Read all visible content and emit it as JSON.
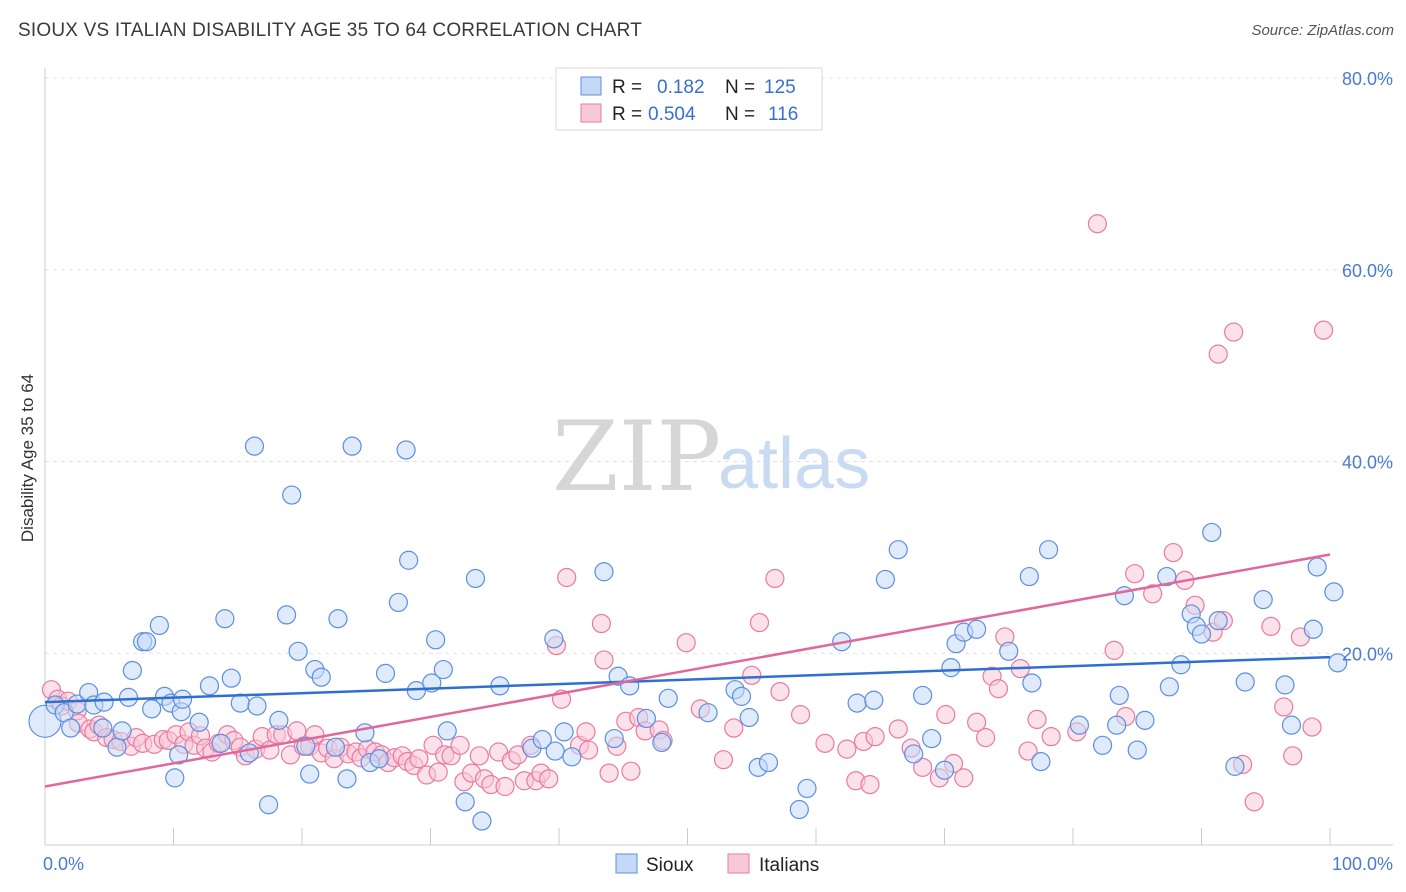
{
  "title": "SIOUX VS ITALIAN DISABILITY AGE 35 TO 64 CORRELATION CHART",
  "source": "Source: ZipAtlas.com",
  "watermark": {
    "zip": "ZIP",
    "atlas": "atlas"
  },
  "legend": {
    "rows": [
      {
        "r_label": "R =",
        "r_value": "0.182",
        "n_label": "N =",
        "n_value": "125"
      },
      {
        "r_label": "R =",
        "r_value": "0.504",
        "n_label": "N =",
        "n_value": "116"
      }
    ]
  },
  "chart_data": {
    "type": "scatter",
    "ylabel": "Disability Age 35 to 64",
    "xlim": [
      0,
      100
    ],
    "ylim": [
      0,
      80
    ],
    "x_tick_labels": {
      "left": "0.0%",
      "right": "100.0%"
    },
    "y_ticks": [
      {
        "value": 20,
        "label": "20.0%"
      },
      {
        "value": 40,
        "label": "40.0%"
      },
      {
        "value": 60,
        "label": "60.0%"
      },
      {
        "value": 80,
        "label": "80.0%"
      }
    ],
    "grid": true,
    "legend_placement": "top-center",
    "colors": {
      "sioux": "#5b8fe0",
      "sioux_fill": "#c5d8f5",
      "italians": "#ea7aa0",
      "italians_fill": "#f7c8d7"
    },
    "series": [
      {
        "name": "Sioux",
        "trend": {
          "x": [
            0,
            100
          ],
          "y": [
            14.9,
            19.6
          ]
        },
        "points": [
          [
            0,
            12.9
          ],
          [
            0.8,
            14.6
          ],
          [
            1.5,
            13.8
          ],
          [
            2,
            12.2
          ],
          [
            2.5,
            14.7
          ],
          [
            3.4,
            15.9
          ],
          [
            3.8,
            14.6
          ],
          [
            4.5,
            12.2
          ],
          [
            4.6,
            14.9
          ],
          [
            5.6,
            10.2
          ],
          [
            6,
            11.9
          ],
          [
            6.5,
            15.4
          ],
          [
            6.8,
            18.2
          ],
          [
            7.6,
            21.2
          ],
          [
            7.9,
            21.2
          ],
          [
            8.3,
            14.2
          ],
          [
            8.9,
            22.9
          ],
          [
            9.3,
            15.5
          ],
          [
            9.8,
            14.8
          ],
          [
            10.1,
            7
          ],
          [
            10.4,
            9.4
          ],
          [
            10.6,
            13.9
          ],
          [
            10.7,
            15.2
          ],
          [
            12,
            12.8
          ],
          [
            12.8,
            16.6
          ],
          [
            13.7,
            10.6
          ],
          [
            14,
            23.6
          ],
          [
            14.5,
            17.4
          ],
          [
            15.2,
            14.8
          ],
          [
            15.9,
            9.6
          ],
          [
            16.3,
            41.6
          ],
          [
            16.5,
            14.5
          ],
          [
            17.4,
            4.2
          ],
          [
            18.2,
            13
          ],
          [
            18.8,
            24
          ],
          [
            19.2,
            36.5
          ],
          [
            19.7,
            20.2
          ],
          [
            20.3,
            10.3
          ],
          [
            20.6,
            7.4
          ],
          [
            21,
            18.3
          ],
          [
            21.5,
            17.5
          ],
          [
            22.6,
            10.2
          ],
          [
            22.8,
            23.6
          ],
          [
            23.5,
            6.9
          ],
          [
            23.9,
            41.6
          ],
          [
            24.9,
            11.7
          ],
          [
            25.3,
            8.6
          ],
          [
            26,
            9
          ],
          [
            26.5,
            17.9
          ],
          [
            27.5,
            25.3
          ],
          [
            28.1,
            41.2
          ],
          [
            28.3,
            29.7
          ],
          [
            28.9,
            16.1
          ],
          [
            30.1,
            16.9
          ],
          [
            30.4,
            21.4
          ],
          [
            31,
            18.3
          ],
          [
            31.3,
            11.9
          ],
          [
            32.7,
            4.5
          ],
          [
            33.5,
            27.8
          ],
          [
            34,
            2.5
          ],
          [
            35.4,
            16.6
          ],
          [
            37.9,
            10.1
          ],
          [
            38.7,
            11
          ],
          [
            39.6,
            21.5
          ],
          [
            39.7,
            9.8
          ],
          [
            40.4,
            11.8
          ],
          [
            41,
            9.2
          ],
          [
            43.5,
            28.5
          ],
          [
            44.3,
            11.1
          ],
          [
            44.6,
            17.6
          ],
          [
            45.5,
            16.6
          ],
          [
            46.8,
            13.2
          ],
          [
            48,
            10.7
          ],
          [
            48.5,
            15.3
          ],
          [
            51.6,
            13.8
          ],
          [
            53.7,
            16.2
          ],
          [
            54.2,
            15.5
          ],
          [
            54.8,
            13.3
          ],
          [
            55.5,
            8.1
          ],
          [
            56.3,
            8.6
          ],
          [
            58.7,
            3.7
          ],
          [
            59.3,
            5.9
          ],
          [
            62,
            21.2
          ],
          [
            63.2,
            14.8
          ],
          [
            64.5,
            15.1
          ],
          [
            65.4,
            27.7
          ],
          [
            66.4,
            30.8
          ],
          [
            67.6,
            9.5
          ],
          [
            68.3,
            15.6
          ],
          [
            69,
            11.1
          ],
          [
            70,
            7.8
          ],
          [
            70.5,
            18.5
          ],
          [
            70.9,
            21
          ],
          [
            71.5,
            22.2
          ],
          [
            72.5,
            22.5
          ],
          [
            75,
            20.2
          ],
          [
            76.6,
            28
          ],
          [
            76.8,
            16.9
          ],
          [
            77.5,
            8.7
          ],
          [
            78.1,
            30.8
          ],
          [
            80.5,
            12.5
          ],
          [
            82.3,
            10.4
          ],
          [
            83.4,
            12.5
          ],
          [
            83.6,
            15.6
          ],
          [
            84,
            26
          ],
          [
            85,
            9.9
          ],
          [
            85.6,
            13
          ],
          [
            87.3,
            28
          ],
          [
            87.5,
            16.5
          ],
          [
            88.4,
            18.8
          ],
          [
            89.2,
            24.1
          ],
          [
            89.6,
            22.8
          ],
          [
            90,
            22
          ],
          [
            90.8,
            32.6
          ],
          [
            91.3,
            23.4
          ],
          [
            92.6,
            8.2
          ],
          [
            93.4,
            17
          ],
          [
            94.8,
            25.6
          ],
          [
            96.5,
            16.7
          ],
          [
            97,
            12.5
          ],
          [
            98.7,
            22.5
          ],
          [
            99,
            29
          ],
          [
            100.3,
            26.4
          ],
          [
            100.6,
            19
          ]
        ]
      },
      {
        "name": "Italians",
        "trend": {
          "x": [
            0,
            100
          ],
          "y": [
            6.1,
            30.3
          ]
        },
        "points": [
          [
            0.5,
            16.2
          ],
          [
            1,
            15.2
          ],
          [
            1.3,
            14.5
          ],
          [
            1.8,
            15
          ],
          [
            2.5,
            14
          ],
          [
            2.6,
            12.7
          ],
          [
            3.5,
            12.1
          ],
          [
            3.8,
            11.8
          ],
          [
            4.2,
            12.5
          ],
          [
            4.8,
            11.2
          ],
          [
            5.3,
            11
          ],
          [
            5.9,
            10.8
          ],
          [
            6.7,
            10.3
          ],
          [
            7.1,
            11.2
          ],
          [
            7.6,
            10.6
          ],
          [
            8.5,
            10.5
          ],
          [
            9.2,
            11
          ],
          [
            9.6,
            10.9
          ],
          [
            10.2,
            11.5
          ],
          [
            10.8,
            10.5
          ],
          [
            11.2,
            11.8
          ],
          [
            11.6,
            10.4
          ],
          [
            12.1,
            11.4
          ],
          [
            12.5,
            10.1
          ],
          [
            13,
            9.7
          ],
          [
            13.5,
            10.6
          ],
          [
            14.2,
            11.5
          ],
          [
            14.7,
            10.9
          ],
          [
            15.2,
            10.2
          ],
          [
            15.6,
            9.3
          ],
          [
            16.4,
            10
          ],
          [
            16.9,
            11.3
          ],
          [
            17.5,
            9.9
          ],
          [
            18,
            11.5
          ],
          [
            18.5,
            11.5
          ],
          [
            19.1,
            9.4
          ],
          [
            19.6,
            11.9
          ],
          [
            20.1,
            10.3
          ],
          [
            20.6,
            10.3
          ],
          [
            21,
            11.5
          ],
          [
            21.5,
            9.6
          ],
          [
            22,
            10.1
          ],
          [
            22.5,
            9
          ],
          [
            23,
            10.2
          ],
          [
            23.6,
            9.5
          ],
          [
            24.2,
            9.7
          ],
          [
            24.6,
            9.1
          ],
          [
            25.1,
            10
          ],
          [
            25.7,
            9.7
          ],
          [
            26.2,
            9.4
          ],
          [
            26.7,
            8.6
          ],
          [
            27.2,
            9.1
          ],
          [
            27.8,
            9.3
          ],
          [
            28.2,
            8.7
          ],
          [
            28.7,
            8.3
          ],
          [
            29.1,
            9
          ],
          [
            29.7,
            7.3
          ],
          [
            30.2,
            10.4
          ],
          [
            30.6,
            7.6
          ],
          [
            31.1,
            9.4
          ],
          [
            31.6,
            9.3
          ],
          [
            32.3,
            10.4
          ],
          [
            32.6,
            6.6
          ],
          [
            33.2,
            7.5
          ],
          [
            33.8,
            9.3
          ],
          [
            34.2,
            6.9
          ],
          [
            34.7,
            6.3
          ],
          [
            35.3,
            9.7
          ],
          [
            35.8,
            6.1
          ],
          [
            36.3,
            8.8
          ],
          [
            36.8,
            9.4
          ],
          [
            37.3,
            6.7
          ],
          [
            37.8,
            10.4
          ],
          [
            38.2,
            6.7
          ],
          [
            38.6,
            7.5
          ],
          [
            39.2,
            6.9
          ],
          [
            39.8,
            20.8
          ],
          [
            40.2,
            15.2
          ],
          [
            40.6,
            27.9
          ],
          [
            41.6,
            10.4
          ],
          [
            42.1,
            11.8
          ],
          [
            42.3,
            9.9
          ],
          [
            43.3,
            23.1
          ],
          [
            43.5,
            19.3
          ],
          [
            43.9,
            7.5
          ],
          [
            44.5,
            10.3
          ],
          [
            45.2,
            12.9
          ],
          [
            45.6,
            7.7
          ],
          [
            46.2,
            13.3
          ],
          [
            46.7,
            11.9
          ],
          [
            47.8,
            12
          ],
          [
            48.1,
            10.9
          ],
          [
            49.9,
            21.1
          ],
          [
            51,
            14.2
          ],
          [
            52.8,
            8.9
          ],
          [
            53.6,
            12.2
          ],
          [
            55,
            17.7
          ],
          [
            55.6,
            23.2
          ],
          [
            56.8,
            27.8
          ],
          [
            57.2,
            16
          ],
          [
            58.8,
            13.6
          ],
          [
            60.7,
            10.6
          ],
          [
            62.4,
            10
          ],
          [
            63.1,
            6.7
          ],
          [
            63.7,
            10.8
          ],
          [
            64.2,
            6.3
          ],
          [
            64.6,
            11.3
          ],
          [
            66.4,
            12.1
          ],
          [
            67.4,
            10.1
          ],
          [
            68.3,
            8.1
          ],
          [
            69.6,
            7
          ],
          [
            70.1,
            13.6
          ],
          [
            70.7,
            8.5
          ],
          [
            71.5,
            7
          ],
          [
            72.5,
            12.8
          ],
          [
            73.2,
            11.2
          ],
          [
            73.7,
            17.6
          ],
          [
            74.2,
            16.3
          ],
          [
            74.7,
            21.7
          ],
          [
            75.9,
            18.4
          ],
          [
            76.5,
            9.8
          ],
          [
            77.2,
            13.1
          ],
          [
            78.3,
            11.3
          ],
          [
            80.3,
            11.8
          ],
          [
            81.9,
            64.8
          ],
          [
            83.2,
            20.3
          ],
          [
            84.1,
            13.4
          ],
          [
            84.8,
            28.3
          ],
          [
            86.2,
            26.2
          ],
          [
            87.8,
            30.5
          ],
          [
            88.7,
            27.6
          ],
          [
            89.5,
            25
          ],
          [
            90.9,
            22.2
          ],
          [
            91.7,
            23.4
          ],
          [
            91.3,
            51.2
          ],
          [
            92.5,
            53.5
          ],
          [
            93.2,
            8.4
          ],
          [
            94.1,
            4.5
          ],
          [
            95.4,
            22.8
          ],
          [
            96.4,
            14.4
          ],
          [
            97.1,
            9.3
          ],
          [
            97.7,
            21.7
          ],
          [
            98.6,
            12.3
          ],
          [
            99.5,
            53.7
          ]
        ]
      }
    ]
  },
  "bottom_legend": [
    "Sioux",
    "Italians"
  ]
}
